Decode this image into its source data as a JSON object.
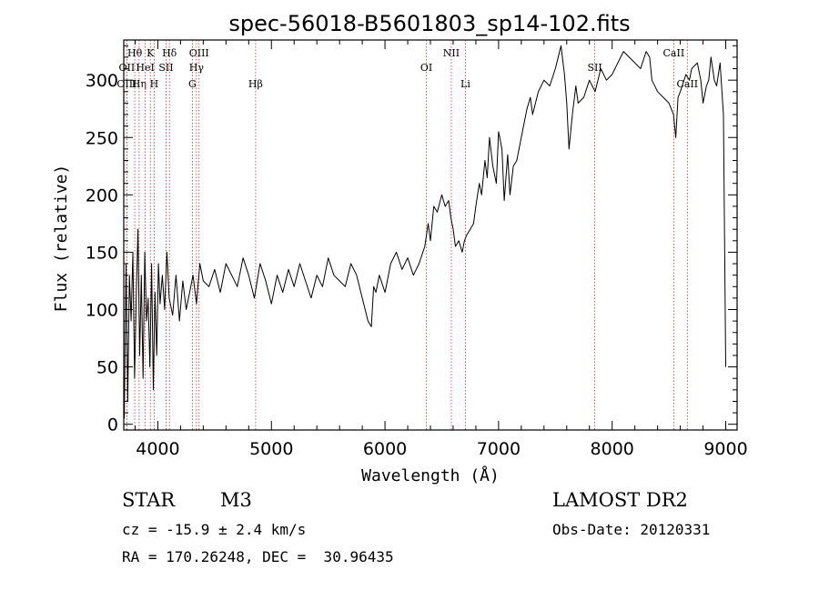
{
  "chart_data": {
    "type": "line",
    "title": "spec-56018-B5601803_sp14-102.fits",
    "xlabel": "Wavelength (Å)",
    "ylabel": "Flux (relative)",
    "xlim": [
      3700,
      9100
    ],
    "ylim": [
      -5,
      335
    ],
    "xticks": [
      4000,
      5000,
      6000,
      7000,
      8000,
      9000
    ],
    "yticks": [
      0,
      50,
      100,
      150,
      200,
      250,
      300
    ],
    "grid": false,
    "series": [
      {
        "x": [
          3705,
          3720,
          3735,
          3750,
          3765,
          3780,
          3795,
          3810,
          3825,
          3840,
          3855,
          3870,
          3885,
          3900,
          3915,
          3930,
          3945,
          3960,
          3975,
          3990,
          4005,
          4020,
          4040,
          4060,
          4080,
          4100,
          4130,
          4160,
          4190,
          4220,
          4250,
          4280,
          4310,
          4340,
          4370,
          4400,
          4450,
          4500,
          4550,
          4600,
          4650,
          4700,
          4750,
          4800,
          4850,
          4900,
          4950,
          5000,
          5050,
          5100,
          5150,
          5200,
          5250,
          5300,
          5350,
          5400,
          5450,
          5500,
          5550,
          5600,
          5650,
          5700,
          5750,
          5800,
          5850,
          5880,
          5900,
          5920,
          5950,
          6000,
          6050,
          6100,
          6150,
          6200,
          6250,
          6300,
          6350,
          6380,
          6400,
          6430,
          6460,
          6500,
          6530,
          6560,
          6580,
          6600,
          6620,
          6650,
          6680,
          6700,
          6720,
          6750,
          6780,
          6800,
          6830,
          6850,
          6880,
          6900,
          6920,
          6950,
          6980,
          7000,
          7030,
          7050,
          7080,
          7100,
          7130,
          7160,
          7190,
          7220,
          7250,
          7280,
          7300,
          7350,
          7400,
          7450,
          7500,
          7550,
          7580,
          7600,
          7610,
          7620,
          7630,
          7650,
          7680,
          7700,
          7750,
          7800,
          7850,
          7900,
          7950,
          8000,
          8050,
          8100,
          8150,
          8200,
          8250,
          8300,
          8330,
          8350,
          8400,
          8450,
          8500,
          8540,
          8560,
          8580,
          8600,
          8650,
          8680,
          8700,
          8750,
          8780,
          8800,
          8830,
          8850,
          8870,
          8900,
          8920,
          8950,
          8980,
          9000
        ],
        "y": [
          5,
          140,
          20,
          130,
          90,
          150,
          40,
          110,
          170,
          60,
          130,
          40,
          150,
          90,
          110,
          50,
          140,
          30,
          115,
          60,
          140,
          105,
          130,
          100,
          150,
          110,
          95,
          130,
          90,
          125,
          100,
          115,
          130,
          105,
          140,
          125,
          120,
          135,
          115,
          140,
          130,
          120,
          145,
          130,
          110,
          140,
          125,
          105,
          130,
          115,
          135,
          120,
          140,
          125,
          110,
          130,
          120,
          145,
          130,
          125,
          120,
          140,
          130,
          110,
          90,
          85,
          120,
          115,
          130,
          115,
          140,
          150,
          135,
          145,
          130,
          140,
          155,
          175,
          160,
          190,
          185,
          200,
          190,
          195,
          180,
          170,
          155,
          160,
          150,
          160,
          165,
          170,
          175,
          190,
          210,
          200,
          230,
          215,
          250,
          225,
          210,
          255,
          240,
          195,
          235,
          200,
          225,
          230,
          245,
          260,
          275,
          285,
          270,
          290,
          300,
          295,
          310,
          330,
          305,
          280,
          260,
          240,
          250,
          270,
          295,
          280,
          285,
          300,
          290,
          310,
          300,
          305,
          315,
          325,
          320,
          315,
          310,
          325,
          320,
          300,
          290,
          285,
          280,
          270,
          250,
          285,
          290,
          305,
          300,
          310,
          315,
          300,
          280,
          295,
          300,
          320,
          300,
          295,
          315,
          270,
          50
        ]
      }
    ],
    "spectral_lines": [
      {
        "label": "Hθ",
        "x": 3797,
        "row": 1
      },
      {
        "label": "OII",
        "x": 3727,
        "row": 2
      },
      {
        "label": "OIII",
        "x": 3727,
        "row": 3
      },
      {
        "label": "Hη",
        "x": 3835,
        "row": 3
      },
      {
        "label": "HeI",
        "x": 3889,
        "row": 2
      },
      {
        "label": "K",
        "x": 3934,
        "row": 1
      },
      {
        "label": "H",
        "x": 3968,
        "row": 3
      },
      {
        "label": "SII",
        "x": 4072,
        "row": 2
      },
      {
        "label": "Hδ",
        "x": 4102,
        "row": 1
      },
      {
        "label": "G",
        "x": 4304,
        "row": 3
      },
      {
        "label": "OIII",
        "x": 4363,
        "row": 1
      },
      {
        "label": "Hγ",
        "x": 4340,
        "row": 2
      },
      {
        "label": "Hβ",
        "x": 4861,
        "row": 3
      },
      {
        "label": "OI",
        "x": 6364,
        "row": 2
      },
      {
        "label": "NII",
        "x": 6584,
        "row": 1
      },
      {
        "label": "Li",
        "x": 6708,
        "row": 3
      },
      {
        "label": "SII",
        "x": 7847,
        "row": 2
      },
      {
        "label": "CaII",
        "x": 8542,
        "row": 1
      },
      {
        "label": "CaII",
        "x": 8662,
        "row": 3
      }
    ]
  },
  "info": {
    "object_class": "STAR",
    "subclass": "M3",
    "survey": "LAMOST DR2",
    "redshift": "cz = -15.9 ± 2.4 km/s",
    "obs_date": "Obs-Date: 20120331",
    "coords": "RA = 170.26248, DEC =  30.96435"
  },
  "colors": {
    "line": "#000000",
    "marker": "#cc3333"
  }
}
